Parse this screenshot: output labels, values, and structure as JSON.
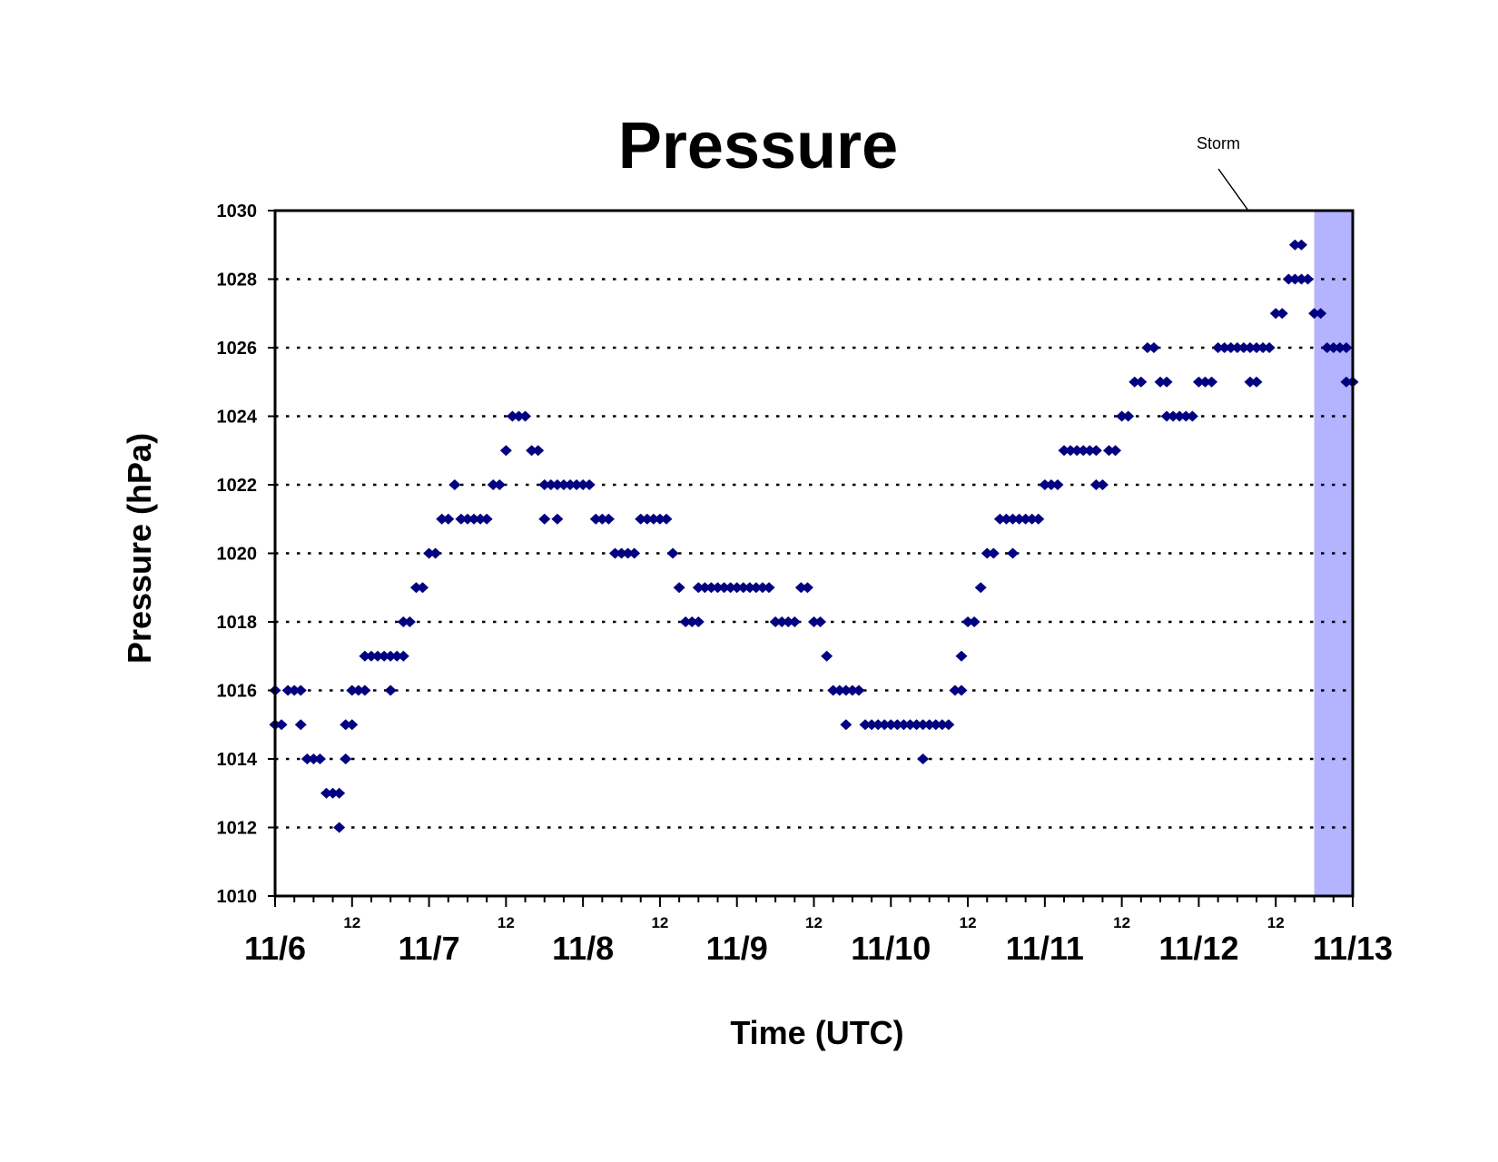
{
  "chart_data": {
    "type": "scatter",
    "title": "Pressure",
    "xlabel": "Time (UTC)",
    "ylabel": "Pressure (hPa)",
    "ylim": [
      1010,
      1030
    ],
    "yticks": [
      1010,
      1012,
      1014,
      1016,
      1018,
      1020,
      1022,
      1024,
      1026,
      1028,
      1030
    ],
    "xlim_days": [
      "11/6",
      "11/13"
    ],
    "x_major_labels": [
      "11/6",
      "11/7",
      "11/8",
      "11/9",
      "11/10",
      "11/11",
      "11/12",
      "11/13"
    ],
    "x_minor_label": "12",
    "grid": "horizontal dotted",
    "annotation": {
      "text": "Storm",
      "span_start": "11/12 18:00",
      "span_end": "11/13 00:00"
    },
    "colors": {
      "marker": "#000080",
      "storm_band": "#b3b3ff",
      "grid": "#000000"
    },
    "series": [
      {
        "points": [
          [
            "11/6 00:00",
            1015
          ],
          [
            "11/6 00:00",
            1016
          ],
          [
            "11/6 01:00",
            1015
          ],
          [
            "11/6 02:00",
            1016
          ],
          [
            "11/6 03:00",
            1016
          ],
          [
            "11/6 04:00",
            1016
          ],
          [
            "11/6 04:00",
            1015
          ],
          [
            "11/6 05:00",
            1014
          ],
          [
            "11/6 06:00",
            1014
          ],
          [
            "11/6 07:00",
            1014
          ],
          [
            "11/6 08:00",
            1013
          ],
          [
            "11/6 09:00",
            1013
          ],
          [
            "11/6 10:00",
            1013
          ],
          [
            "11/6 10:00",
            1012
          ],
          [
            "11/6 11:00",
            1014
          ],
          [
            "11/6 11:00",
            1015
          ],
          [
            "11/6 12:00",
            1015
          ],
          [
            "11/6 12:00",
            1016
          ],
          [
            "11/6 13:00",
            1016
          ],
          [
            "11/6 14:00",
            1017
          ],
          [
            "11/6 14:00",
            1016
          ],
          [
            "11/6 15:00",
            1017
          ],
          [
            "11/6 16:00",
            1017
          ],
          [
            "11/6 17:00",
            1017
          ],
          [
            "11/6 18:00",
            1017
          ],
          [
            "11/6 18:00",
            1016
          ],
          [
            "11/6 19:00",
            1017
          ],
          [
            "11/6 20:00",
            1017
          ],
          [
            "11/6 20:00",
            1018
          ],
          [
            "11/6 21:00",
            1018
          ],
          [
            "11/6 22:00",
            1019
          ],
          [
            "11/6 23:00",
            1019
          ],
          [
            "11/7 00:00",
            1020
          ],
          [
            "11/7 01:00",
            1020
          ],
          [
            "11/7 02:00",
            1021
          ],
          [
            "11/7 03:00",
            1021
          ],
          [
            "11/7 04:00",
            1022
          ],
          [
            "11/7 05:00",
            1021
          ],
          [
            "11/7 06:00",
            1021
          ],
          [
            "11/7 07:00",
            1021
          ],
          [
            "11/7 08:00",
            1021
          ],
          [
            "11/7 09:00",
            1021
          ],
          [
            "11/7 10:00",
            1022
          ],
          [
            "11/7 11:00",
            1022
          ],
          [
            "11/7 12:00",
            1023
          ],
          [
            "11/7 13:00",
            1024
          ],
          [
            "11/7 14:00",
            1024
          ],
          [
            "11/7 15:00",
            1024
          ],
          [
            "11/7 16:00",
            1023
          ],
          [
            "11/7 17:00",
            1023
          ],
          [
            "11/7 18:00",
            1022
          ],
          [
            "11/7 18:00",
            1021
          ],
          [
            "11/7 19:00",
            1022
          ],
          [
            "11/7 20:00",
            1022
          ],
          [
            "11/7 20:00",
            1021
          ],
          [
            "11/7 21:00",
            1022
          ],
          [
            "11/7 22:00",
            1022
          ],
          [
            "11/7 23:00",
            1022
          ],
          [
            "11/8 00:00",
            1022
          ],
          [
            "11/8 01:00",
            1022
          ],
          [
            "11/8 02:00",
            1021
          ],
          [
            "11/8 03:00",
            1021
          ],
          [
            "11/8 04:00",
            1021
          ],
          [
            "11/8 05:00",
            1020
          ],
          [
            "11/8 06:00",
            1020
          ],
          [
            "11/8 07:00",
            1020
          ],
          [
            "11/8 08:00",
            1020
          ],
          [
            "11/8 09:00",
            1021
          ],
          [
            "11/8 10:00",
            1021
          ],
          [
            "11/8 11:00",
            1021
          ],
          [
            "11/8 12:00",
            1021
          ],
          [
            "11/8 13:00",
            1021
          ],
          [
            "11/8 14:00",
            1020
          ],
          [
            "11/8 15:00",
            1019
          ],
          [
            "11/8 16:00",
            1018
          ],
          [
            "11/8 17:00",
            1018
          ],
          [
            "11/8 18:00",
            1018
          ],
          [
            "11/8 18:00",
            1019
          ],
          [
            "11/8 19:00",
            1019
          ],
          [
            "11/8 20:00",
            1019
          ],
          [
            "11/8 21:00",
            1019
          ],
          [
            "11/8 22:00",
            1019
          ],
          [
            "11/8 23:00",
            1019
          ],
          [
            "11/9 00:00",
            1019
          ],
          [
            "11/9 01:00",
            1019
          ],
          [
            "11/9 02:00",
            1019
          ],
          [
            "11/9 03:00",
            1019
          ],
          [
            "11/9 04:00",
            1019
          ],
          [
            "11/9 05:00",
            1019
          ],
          [
            "11/9 06:00",
            1018
          ],
          [
            "11/9 07:00",
            1018
          ],
          [
            "11/9 08:00",
            1018
          ],
          [
            "11/9 09:00",
            1018
          ],
          [
            "11/9 10:00",
            1019
          ],
          [
            "11/9 11:00",
            1019
          ],
          [
            "11/9 12:00",
            1018
          ],
          [
            "11/9 13:00",
            1018
          ],
          [
            "11/9 14:00",
            1017
          ],
          [
            "11/9 15:00",
            1016
          ],
          [
            "11/9 16:00",
            1016
          ],
          [
            "11/9 17:00",
            1016
          ],
          [
            "11/9 17:00",
            1015
          ],
          [
            "11/9 18:00",
            1016
          ],
          [
            "11/9 19:00",
            1016
          ],
          [
            "11/9 20:00",
            1015
          ],
          [
            "11/9 21:00",
            1015
          ],
          [
            "11/9 22:00",
            1015
          ],
          [
            "11/9 23:00",
            1015
          ],
          [
            "11/10 00:00",
            1015
          ],
          [
            "11/10 01:00",
            1015
          ],
          [
            "11/10 02:00",
            1015
          ],
          [
            "11/10 03:00",
            1015
          ],
          [
            "11/10 04:00",
            1015
          ],
          [
            "11/10 05:00",
            1015
          ],
          [
            "11/10 05:00",
            1014
          ],
          [
            "11/10 06:00",
            1015
          ],
          [
            "11/10 07:00",
            1015
          ],
          [
            "11/10 08:00",
            1015
          ],
          [
            "11/10 09:00",
            1015
          ],
          [
            "11/10 10:00",
            1016
          ],
          [
            "11/10 11:00",
            1016
          ],
          [
            "11/10 11:00",
            1017
          ],
          [
            "11/10 12:00",
            1018
          ],
          [
            "11/10 13:00",
            1018
          ],
          [
            "11/10 14:00",
            1019
          ],
          [
            "11/10 15:00",
            1020
          ],
          [
            "11/10 16:00",
            1020
          ],
          [
            "11/10 17:00",
            1021
          ],
          [
            "11/10 18:00",
            1021
          ],
          [
            "11/10 19:00",
            1021
          ],
          [
            "11/10 19:00",
            1020
          ],
          [
            "11/10 20:00",
            1021
          ],
          [
            "11/10 21:00",
            1021
          ],
          [
            "11/10 22:00",
            1021
          ],
          [
            "11/10 23:00",
            1021
          ],
          [
            "11/11 00:00",
            1022
          ],
          [
            "11/11 01:00",
            1022
          ],
          [
            "11/11 02:00",
            1022
          ],
          [
            "11/11 03:00",
            1023
          ],
          [
            "11/11 04:00",
            1023
          ],
          [
            "11/11 05:00",
            1023
          ],
          [
            "11/11 06:00",
            1023
          ],
          [
            "11/11 07:00",
            1023
          ],
          [
            "11/11 08:00",
            1022
          ],
          [
            "11/11 08:00",
            1023
          ],
          [
            "11/11 09:00",
            1022
          ],
          [
            "11/11 10:00",
            1023
          ],
          [
            "11/11 11:00",
            1023
          ],
          [
            "11/11 12:00",
            1024
          ],
          [
            "11/11 13:00",
            1024
          ],
          [
            "11/11 14:00",
            1025
          ],
          [
            "11/11 15:00",
            1025
          ],
          [
            "11/11 16:00",
            1026
          ],
          [
            "11/11 17:00",
            1026
          ],
          [
            "11/11 18:00",
            1025
          ],
          [
            "11/11 19:00",
            1025
          ],
          [
            "11/11 19:00",
            1024
          ],
          [
            "11/11 20:00",
            1024
          ],
          [
            "11/11 21:00",
            1024
          ],
          [
            "11/11 22:00",
            1024
          ],
          [
            "11/11 23:00",
            1024
          ],
          [
            "11/12 00:00",
            1025
          ],
          [
            "11/12 01:00",
            1025
          ],
          [
            "11/12 02:00",
            1025
          ],
          [
            "11/12 03:00",
            1026
          ],
          [
            "11/12 04:00",
            1026
          ],
          [
            "11/12 05:00",
            1026
          ],
          [
            "11/12 06:00",
            1026
          ],
          [
            "11/12 07:00",
            1026
          ],
          [
            "11/12 08:00",
            1025
          ],
          [
            "11/12 08:00",
            1026
          ],
          [
            "11/12 09:00",
            1025
          ],
          [
            "11/12 09:00",
            1026
          ],
          [
            "11/12 10:00",
            1026
          ],
          [
            "11/12 11:00",
            1026
          ],
          [
            "11/12 12:00",
            1027
          ],
          [
            "11/12 13:00",
            1027
          ],
          [
            "11/12 14:00",
            1028
          ],
          [
            "11/12 15:00",
            1028
          ],
          [
            "11/12 15:00",
            1029
          ],
          [
            "11/12 16:00",
            1028
          ],
          [
            "11/12 16:00",
            1029
          ],
          [
            "11/12 17:00",
            1028
          ],
          [
            "11/12 18:00",
            1027
          ],
          [
            "11/12 19:00",
            1027
          ],
          [
            "11/12 20:00",
            1026
          ],
          [
            "11/12 21:00",
            1026
          ],
          [
            "11/12 22:00",
            1026
          ],
          [
            "11/12 23:00",
            1025
          ],
          [
            "11/12 23:00",
            1026
          ],
          [
            "11/13 00:00",
            1025
          ]
        ]
      }
    ]
  }
}
